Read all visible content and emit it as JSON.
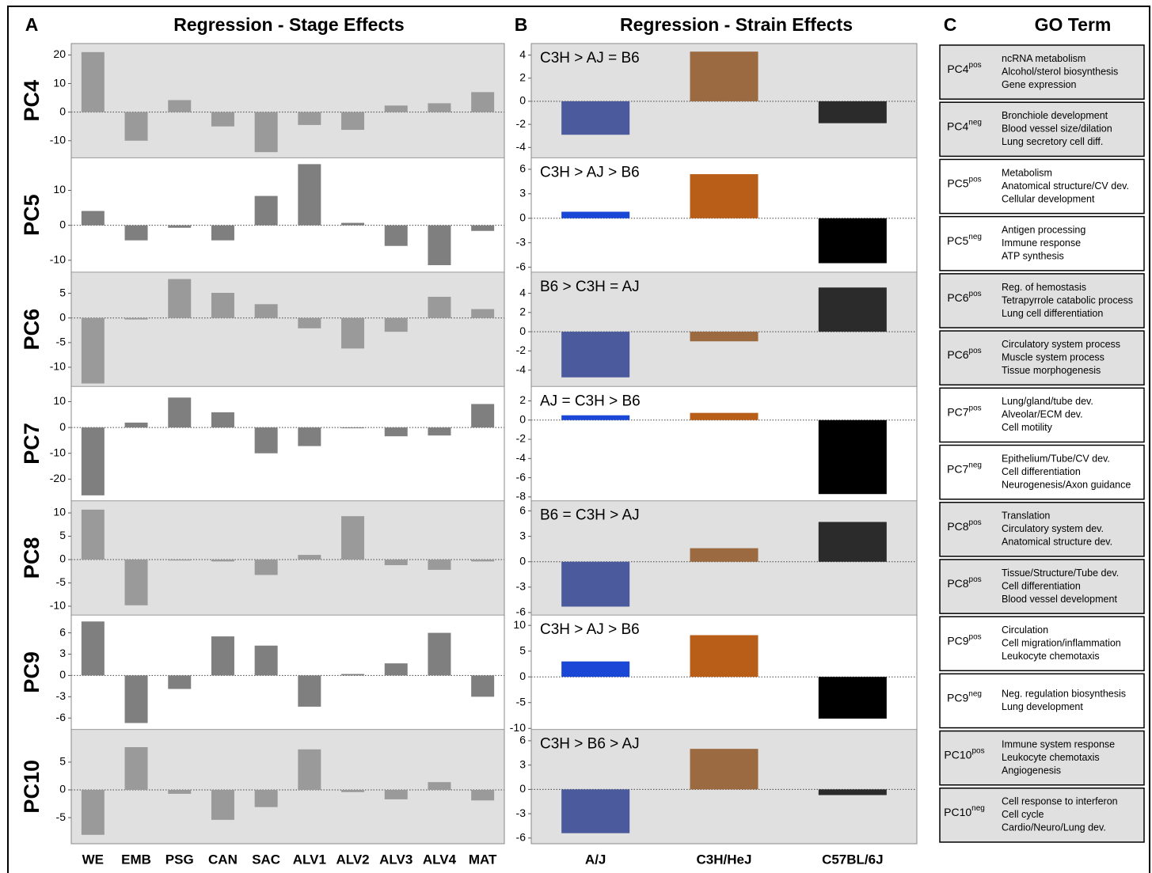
{
  "chart_data": [
    {
      "type": "bar",
      "panel": "A",
      "title": "Regression - Stage Effects",
      "categories": [
        "WE",
        "EMB",
        "PSG",
        "CAN",
        "SAC",
        "ALV1",
        "ALV2",
        "ALV3",
        "ALV4",
        "MAT"
      ],
      "rows": [
        {
          "label": "PC4",
          "color": "#9a9a9a",
          "ylim": [
            -16,
            24
          ],
          "yticks": [
            20,
            10,
            0,
            -10
          ],
          "values": [
            21,
            -10,
            4.2,
            -5,
            -14,
            -4.5,
            -6.2,
            2.3,
            3.1,
            7
          ]
        },
        {
          "label": "PC5",
          "color": "#7f7f7f",
          "ylim": [
            -13.4,
            19.3
          ],
          "yticks": [
            10,
            0,
            -10
          ],
          "values": [
            4.1,
            -4.3,
            -0.7,
            -4.3,
            8.4,
            17.5,
            0.7,
            -5.9,
            -11.4,
            -1.6
          ]
        },
        {
          "label": "PC6",
          "color": "#9a9a9a",
          "ylim": [
            -13.9,
            9.3
          ],
          "yticks": [
            5,
            0,
            -5,
            -10
          ],
          "values": [
            -13.3,
            -0.3,
            7.9,
            5.1,
            2.8,
            -2.1,
            -6.2,
            -2.8,
            4.3,
            1.8
          ]
        },
        {
          "label": "PC7",
          "color": "#7f7f7f",
          "ylim": [
            -28.4,
            15.9
          ],
          "yticks": [
            10,
            0,
            -10,
            -20
          ],
          "values": [
            -26.3,
            1.9,
            11.6,
            5.9,
            -10,
            -7.2,
            -0.3,
            -3.4,
            -3.1,
            9.1
          ]
        },
        {
          "label": "PC8",
          "color": "#9a9a9a",
          "ylim": [
            -11.9,
            12.6
          ],
          "yticks": [
            10,
            5,
            0,
            -5,
            -10
          ],
          "values": [
            10.7,
            -9.8,
            -0.2,
            -0.4,
            -3.3,
            1,
            9.3,
            -1.2,
            -2.2,
            -0.4
          ]
        },
        {
          "label": "PC9",
          "color": "#7f7f7f",
          "ylim": [
            -7.6,
            8.5
          ],
          "yticks": [
            6,
            3,
            0,
            -3,
            -6
          ],
          "values": [
            7.6,
            -6.7,
            -1.9,
            5.5,
            4.2,
            -4.4,
            0.2,
            1.7,
            6,
            -3
          ]
        },
        {
          "label": "PC10",
          "color": "#9a9a9a",
          "ylim": [
            -9.7,
            10.9
          ],
          "yticks": [
            5,
            0,
            -5
          ],
          "values": [
            -8.1,
            7.7,
            -0.7,
            -5.4,
            -3.1,
            7.3,
            -0.4,
            -1.7,
            1.4,
            -1.9
          ]
        }
      ]
    },
    {
      "type": "bar",
      "panel": "B",
      "title": "Regression - Strain Effects",
      "categories": [
        "A/J",
        "C3H/HeJ",
        "C57BL/6J"
      ],
      "rows": [
        {
          "annotation": "C3H > AJ = B6",
          "colors": [
            "#4b5a9c",
            "#9b6a40",
            "#2b2b2b"
          ],
          "ylim": [
            -4.9,
            5
          ],
          "yticks": [
            4,
            2,
            0,
            -2,
            -4
          ],
          "values": [
            -2.9,
            4.3,
            -1.9
          ]
        },
        {
          "annotation": "C3H > AJ > B6",
          "colors": [
            "#1a47d6",
            "#b85e18",
            "#000000"
          ],
          "ylim": [
            -6.6,
            7.4
          ],
          "yticks": [
            6,
            3,
            0,
            -3,
            -6
          ],
          "values": [
            0.8,
            5.4,
            -5.5
          ]
        },
        {
          "annotation": "B6 > C3H = AJ",
          "colors": [
            "#4b5a9c",
            "#9b6a40",
            "#2b2b2b"
          ],
          "ylim": [
            -5.7,
            6.2
          ],
          "yticks": [
            4,
            2,
            0,
            -2,
            -4
          ],
          "values": [
            -4.75,
            -1,
            4.6
          ]
        },
        {
          "annotation": "AJ = C3H > B6",
          "colors": [
            "#1a47d6",
            "#b85e18",
            "#000000"
          ],
          "ylim": [
            -8.4,
            3.5
          ],
          "yticks": [
            2,
            0,
            -2,
            -4,
            -6,
            -8
          ],
          "values": [
            0.5,
            0.75,
            -7.7
          ]
        },
        {
          "annotation": "B6 = C3H > AJ",
          "colors": [
            "#4b5a9c",
            "#9b6a40",
            "#2b2b2b"
          ],
          "ylim": [
            -6.3,
            7.2
          ],
          "yticks": [
            6,
            3,
            0,
            -3,
            -6
          ],
          "values": [
            -5.3,
            1.6,
            4.7
          ]
        },
        {
          "annotation": "C3H > AJ > B6",
          "colors": [
            "#1a47d6",
            "#b85e18",
            "#000000"
          ],
          "ylim": [
            -10.2,
            12
          ],
          "yticks": [
            10,
            5,
            0,
            -5,
            -10
          ],
          "values": [
            3,
            8.1,
            -8.1
          ]
        },
        {
          "annotation": "C3H > B6 > AJ",
          "colors": [
            "#4b5a9c",
            "#9b6a40",
            "#2b2b2b"
          ],
          "ylim": [
            -6.7,
            7.4
          ],
          "yticks": [
            6,
            3,
            0,
            -3,
            -6
          ],
          "values": [
            -5.4,
            5,
            -0.7
          ]
        }
      ]
    }
  ],
  "go_terms": {
    "panel": "C",
    "title": "GO Term",
    "rows": [
      {
        "label": "PC4",
        "sup": "pos",
        "terms": [
          "ncRNA metabolism",
          "Alcohol/sterol biosynthesis",
          "Gene expression"
        ]
      },
      {
        "label": "PC4",
        "sup": "neg",
        "terms": [
          "Bronchiole development",
          "Blood vessel size/dilation",
          "Lung secretory cell diff."
        ]
      },
      {
        "label": "PC5",
        "sup": "pos",
        "terms": [
          "Metabolism",
          "Anatomical structure/CV dev.",
          "Cellular development"
        ]
      },
      {
        "label": "PC5",
        "sup": "neg",
        "terms": [
          "Antigen processing",
          "Immune response",
          "ATP synthesis"
        ]
      },
      {
        "label": "PC6",
        "sup": "pos",
        "terms": [
          "Reg. of hemostasis",
          "Tetrapyrrole catabolic process",
          "Lung cell differentiation"
        ]
      },
      {
        "label": "PC6",
        "sup": "pos",
        "terms": [
          "Circulatory system process",
          "Muscle system process",
          "Tissue morphogenesis"
        ]
      },
      {
        "label": "PC7",
        "sup": "pos",
        "terms": [
          "Lung/gland/tube dev.",
          "Alveolar/ECM dev.",
          "Cell motility"
        ]
      },
      {
        "label": "PC7",
        "sup": "neg",
        "terms": [
          "Epithelium/Tube/CV dev.",
          "Cell differentiation",
          "Neurogenesis/Axon guidance"
        ]
      },
      {
        "label": "PC8",
        "sup": "pos",
        "terms": [
          "Translation",
          "Circulatory system dev.",
          "Anatomical structure dev."
        ]
      },
      {
        "label": "PC8",
        "sup": "pos",
        "terms": [
          "Tissue/Structure/Tube dev.",
          "Cell differentiation",
          "Blood vessel development"
        ]
      },
      {
        "label": "PC9",
        "sup": "pos",
        "terms": [
          "Circulation",
          "Cell migration/inflammation",
          "Leukocyte chemotaxis"
        ]
      },
      {
        "label": "PC9",
        "sup": "neg",
        "terms": [
          "Neg. regulation biosynthesis",
          "Lung development"
        ]
      },
      {
        "label": "PC10",
        "sup": "pos",
        "terms": [
          "Immune system response",
          "Leukocyte chemotaxis",
          "Angiogenesis"
        ]
      },
      {
        "label": "PC10",
        "sup": "neg",
        "terms": [
          "Cell response to interferon",
          "Cell cycle",
          "Cardio/Neuro/Lung dev."
        ]
      }
    ]
  }
}
